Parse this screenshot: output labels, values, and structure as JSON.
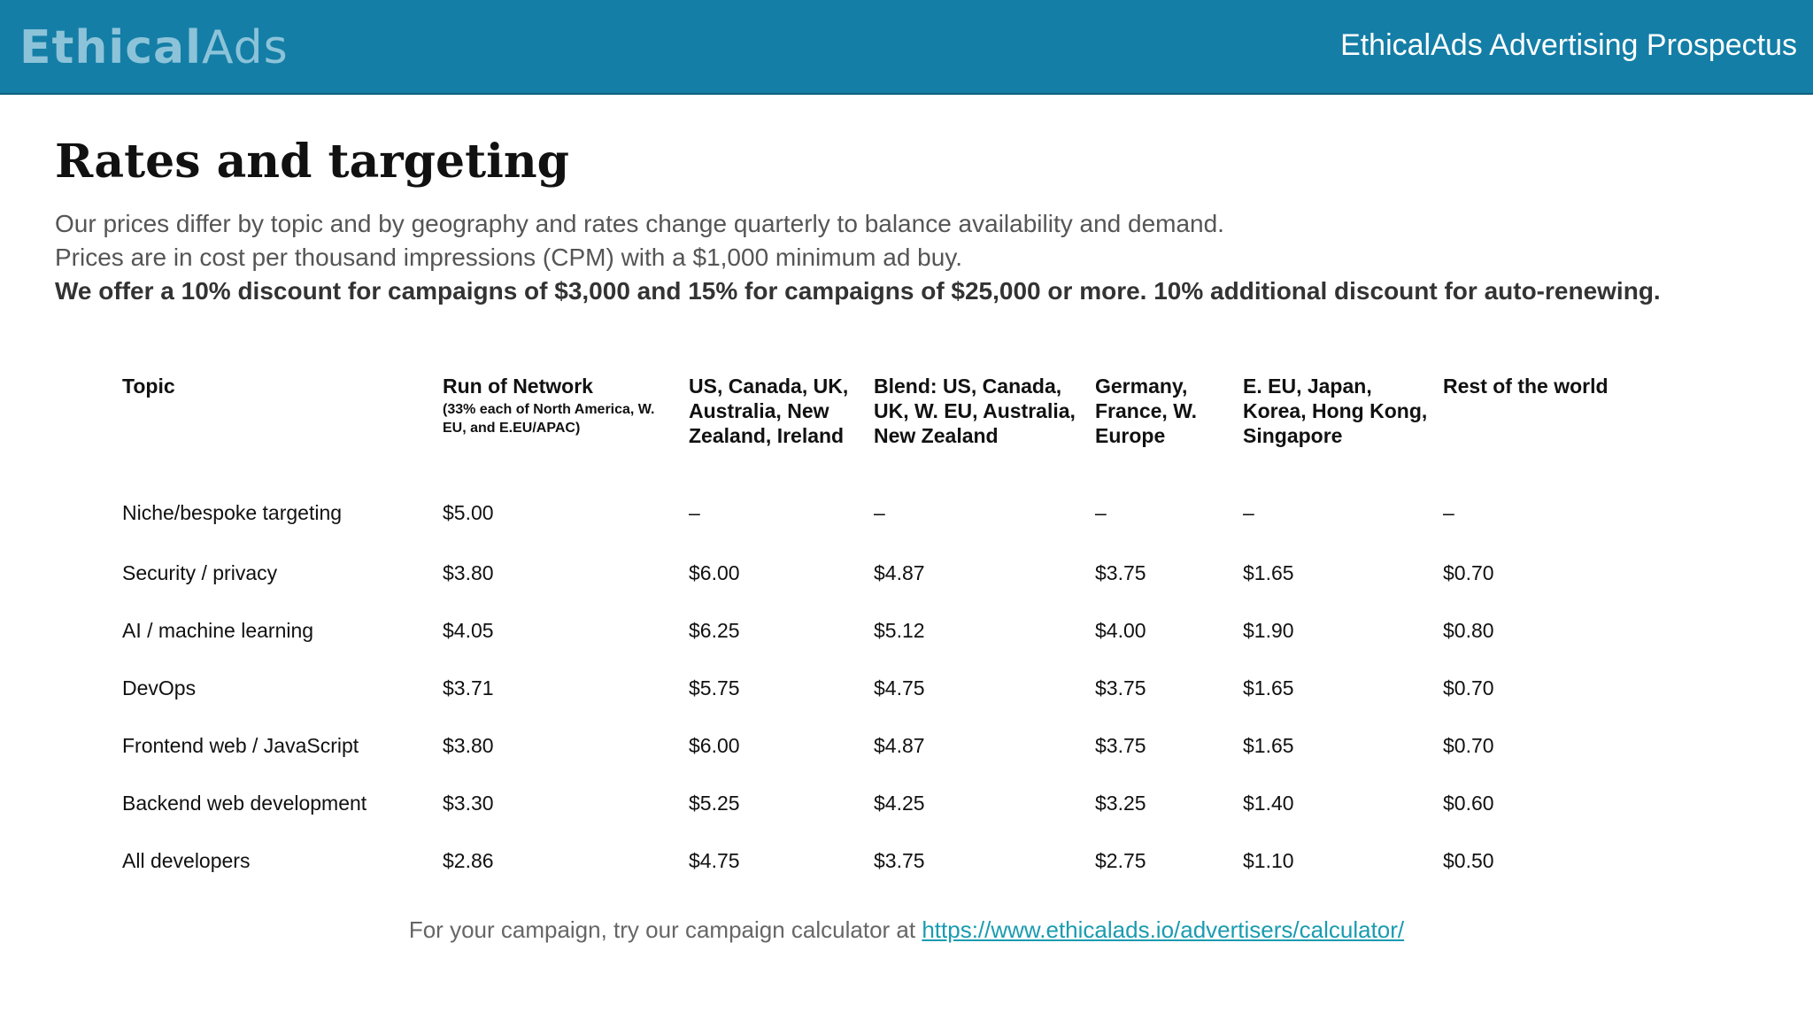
{
  "header": {
    "logo_strong": "Ethical",
    "logo_light": "Ads",
    "title": "EthicalAds Advertising Prospectus"
  },
  "page": {
    "title": "Rates and targeting",
    "intro_line_1": "Our prices differ by topic and by geography and rates change quarterly to balance availability and demand.",
    "intro_line_2": "Prices are in cost per thousand impressions (CPM) with a $1,000 minimum ad buy.",
    "intro_line_3": "We offer a 10% discount for campaigns of $3,000 and 15% for campaigns of $25,000 or more. 10% additional discount for auto-renewing."
  },
  "table": {
    "headers": {
      "topic": "Topic",
      "ron": "Run of Network",
      "ron_sub": "(33% each of North America, W. EU, and E.EU/APAC)",
      "us": "US, Canada, UK, Australia, New Zealand, Ireland",
      "blend": "Blend: US, Canada, UK, W. EU, Australia, New Zealand",
      "de": "Germany, France, W. Europe",
      "eu": "E. EU, Japan, Korea, Hong Kong, Singapore",
      "rest": "Rest of the world"
    },
    "rows": [
      [
        "Niche/bespoke targeting",
        "$5.00",
        "–",
        "–",
        "–",
        "–",
        "–"
      ],
      [
        "Security / privacy",
        "$3.80",
        "$6.00",
        "$4.87",
        "$3.75",
        "$1.65",
        "$0.70"
      ],
      [
        "AI / machine learning",
        "$4.05",
        "$6.25",
        "$5.12",
        "$4.00",
        "$1.90",
        "$0.80"
      ],
      [
        "DevOps",
        "$3.71",
        "$5.75",
        "$4.75",
        "$3.75",
        "$1.65",
        "$0.70"
      ],
      [
        "Frontend web / JavaScript",
        "$3.80",
        "$6.00",
        "$4.87",
        "$3.75",
        "$1.65",
        "$0.70"
      ],
      [
        "Backend web development",
        "$3.30",
        "$5.25",
        "$4.25",
        "$3.25",
        "$1.40",
        "$0.60"
      ],
      [
        "All developers",
        "$2.86",
        "$4.75",
        "$3.75",
        "$2.75",
        "$1.10",
        "$0.50"
      ]
    ]
  },
  "footer": {
    "text": "For your campaign, try our campaign calculator at",
    "link": "https://www.ethicalads.io/advertisers/calculator/"
  }
}
